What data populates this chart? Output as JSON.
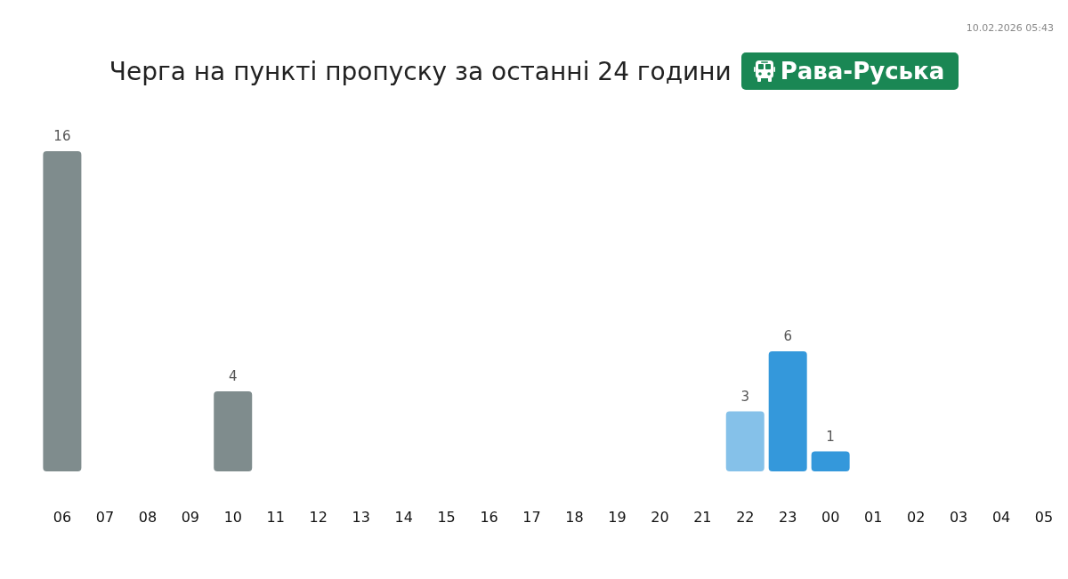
{
  "chart_data": {
    "type": "bar",
    "title": "Черга на пункті пропуску за останні 24 години",
    "subtitle": "Рава-Руська",
    "annotations": [
      "10.02.2026 05:43"
    ],
    "categories": [
      "06",
      "07",
      "08",
      "09",
      "10",
      "11",
      "12",
      "13",
      "14",
      "15",
      "16",
      "17",
      "18",
      "19",
      "20",
      "21",
      "22",
      "23",
      "00",
      "01",
      "02",
      "03",
      "04",
      "05"
    ],
    "values": [
      16,
      null,
      null,
      null,
      4,
      null,
      null,
      null,
      null,
      null,
      null,
      null,
      null,
      null,
      null,
      null,
      3,
      6,
      1,
      null,
      null,
      null,
      null,
      null
    ],
    "colors": [
      "#7f8c8d",
      null,
      null,
      null,
      "#7f8c8d",
      null,
      null,
      null,
      null,
      null,
      null,
      null,
      null,
      null,
      null,
      null,
      "#85c1e9",
      "#3498db",
      "#3498db",
      null,
      null,
      null,
      null,
      null
    ],
    "data_labels": true,
    "tick_labels": "x"
  }
}
